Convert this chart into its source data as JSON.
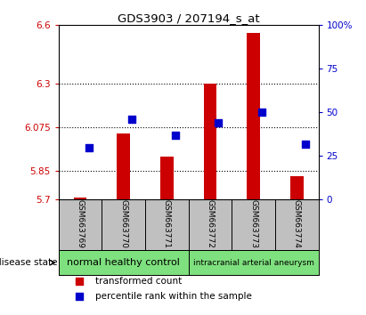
{
  "title": "GDS3903 / 207194_s_at",
  "samples": [
    "GSM663769",
    "GSM663770",
    "GSM663771",
    "GSM663772",
    "GSM663773",
    "GSM663774"
  ],
  "red_values": [
    5.71,
    6.04,
    5.92,
    6.3,
    6.56,
    5.82
  ],
  "blue_values_pct": [
    30,
    46,
    37,
    44,
    50,
    32
  ],
  "ylim_left": [
    5.7,
    6.6
  ],
  "ylim_right": [
    0,
    100
  ],
  "yticks_left": [
    5.7,
    5.85,
    6.075,
    6.3,
    6.6
  ],
  "yticks_right": [
    0,
    25,
    50,
    75,
    100
  ],
  "ytick_labels_left": [
    "5.7",
    "5.85",
    "6.075",
    "6.3",
    "6.6"
  ],
  "ytick_labels_right": [
    "0",
    "25",
    "50",
    "75",
    "100%"
  ],
  "group1_label": "normal healthy control",
  "group2_label": "intracranial arterial aneurysm",
  "group_color": "#7EE07E",
  "disease_state_label": "disease state",
  "legend_red": "transformed count",
  "legend_blue": "percentile rank within the sample",
  "bar_color": "#CC0000",
  "dot_color": "#0000CC",
  "bar_width": 0.3,
  "dot_size": 28,
  "bg_color": "#FFFFFF",
  "tick_gray_bg": "#C0C0C0",
  "grid_linestyle": ":",
  "grid_linewidth": 0.8
}
